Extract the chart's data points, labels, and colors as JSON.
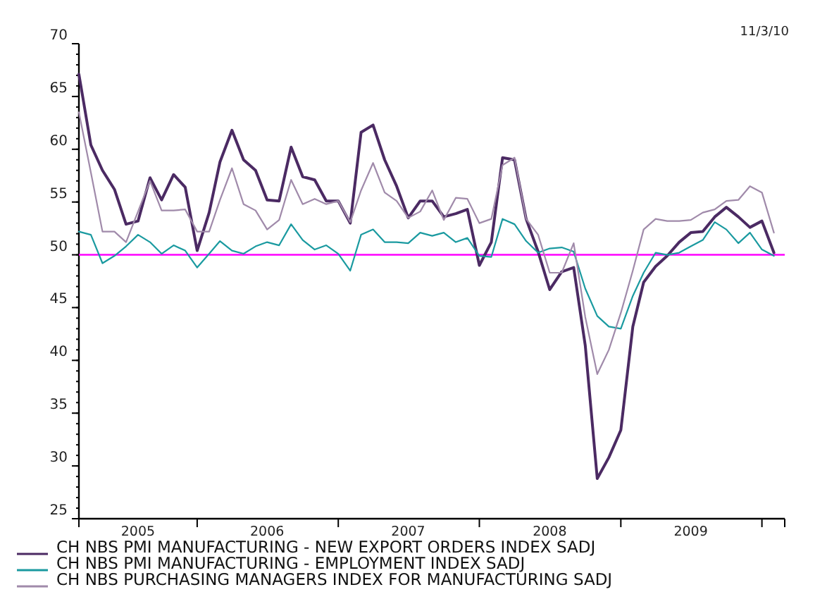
{
  "chart_data": {
    "type": "line",
    "annotations": [
      "11/3/10"
    ],
    "x": [
      "2005-03",
      "2005-04",
      "2005-05",
      "2005-06",
      "2005-07",
      "2005-08",
      "2005-09",
      "2005-10",
      "2005-11",
      "2005-12",
      "2006-01",
      "2006-02",
      "2006-03",
      "2006-04",
      "2006-05",
      "2006-06",
      "2006-07",
      "2006-08",
      "2006-09",
      "2006-10",
      "2006-11",
      "2006-12",
      "2007-01",
      "2007-02",
      "2007-03",
      "2007-04",
      "2007-05",
      "2007-06",
      "2007-07",
      "2007-08",
      "2007-09",
      "2007-10",
      "2007-11",
      "2007-12",
      "2008-01",
      "2008-02",
      "2008-03",
      "2008-04",
      "2008-05",
      "2008-06",
      "2008-07",
      "2008-08",
      "2008-09",
      "2008-10",
      "2008-11",
      "2008-12",
      "2009-01",
      "2009-02",
      "2009-03",
      "2009-04",
      "2009-05",
      "2009-06",
      "2009-07",
      "2009-08",
      "2009-09",
      "2009-10",
      "2009-11",
      "2009-12",
      "2010-01",
      "2010-02"
    ],
    "series": [
      {
        "name": "CH NBS PMI MANUFACTURING - NEW EXPORT ORDERS INDEX SADJ",
        "color": "#4b2a63",
        "values": [
          67.1,
          60.4,
          58.0,
          56.2,
          52.9,
          53.2,
          57.3,
          55.2,
          57.6,
          56.4,
          50.4,
          54.0,
          58.8,
          61.8,
          59.0,
          58.0,
          55.2,
          55.1,
          60.2,
          57.4,
          57.1,
          55.1,
          55.1,
          53.0,
          61.6,
          62.3,
          59.0,
          56.5,
          53.5,
          55.1,
          55.1,
          53.6,
          53.9,
          54.3,
          49.0,
          51.2,
          59.2,
          59.0,
          53.4,
          50.3,
          46.7,
          48.4,
          48.8,
          41.4,
          28.8,
          30.8,
          33.4,
          43.2,
          47.4,
          48.9,
          49.9,
          51.2,
          52.1,
          52.2,
          53.6,
          54.5,
          53.6,
          52.6,
          53.2,
          50.2
        ]
      },
      {
        "name": "CH NBS PMI MANUFACTURING - EMPLOYMENT INDEX SADJ",
        "color": "#1a9aa0",
        "values": [
          52.2,
          51.9,
          49.2,
          49.9,
          50.8,
          51.9,
          51.2,
          50.1,
          50.9,
          50.4,
          48.8,
          50.1,
          51.3,
          50.4,
          50.1,
          50.8,
          51.2,
          50.9,
          52.9,
          51.4,
          50.5,
          50.9,
          50.1,
          48.5,
          51.9,
          52.4,
          51.2,
          51.2,
          51.1,
          52.1,
          51.8,
          52.1,
          51.2,
          51.6,
          49.9,
          49.8,
          53.4,
          52.9,
          51.3,
          50.2,
          50.6,
          50.7,
          50.3,
          46.8,
          44.2,
          43.2,
          43.0,
          46.1,
          48.3,
          50.2,
          50.0,
          50.2,
          50.8,
          51.4,
          53.1,
          52.4,
          51.1,
          52.1,
          50.5,
          49.9
        ]
      },
      {
        "name": "CH NBS PURCHASING MANAGERS INDEX FOR MANUFACTURING SADJ",
        "color": "#a08aaa",
        "values": [
          63.5,
          57.8,
          52.2,
          52.2,
          51.2,
          54.1,
          57.0,
          54.2,
          54.2,
          54.3,
          52.2,
          52.2,
          55.2,
          58.2,
          54.8,
          54.2,
          52.4,
          53.3,
          57.1,
          54.8,
          55.3,
          54.8,
          55.1,
          53.1,
          56.1,
          58.7,
          55.9,
          55.1,
          53.5,
          54.1,
          56.1,
          53.3,
          55.4,
          55.3,
          53.0,
          53.4,
          58.5,
          59.2,
          53.4,
          51.9,
          48.3,
          48.3,
          51.1,
          44.1,
          38.7,
          41.0,
          44.5,
          48.5,
          52.4,
          53.4,
          53.2,
          53.2,
          53.3,
          54.0,
          54.3,
          55.1,
          55.2,
          56.5,
          55.9,
          52.1
        ]
      }
    ],
    "xlim": [
      "2005-03",
      "2010-03"
    ],
    "xticks": [
      {
        "value": "2005-08",
        "label": "2005"
      },
      {
        "value": "2006-01",
        "label": null
      },
      {
        "value": "2006-07",
        "label": "2006"
      },
      {
        "value": "2007-01",
        "label": null
      },
      {
        "value": "2007-07",
        "label": "2007"
      },
      {
        "value": "2008-01",
        "label": null
      },
      {
        "value": "2008-07",
        "label": "2008"
      },
      {
        "value": "2009-01",
        "label": null
      },
      {
        "value": "2009-07",
        "label": "2009"
      },
      {
        "value": "2010-01",
        "label": null
      }
    ],
    "ylim": [
      25,
      70
    ],
    "yticks": [
      25,
      30,
      35,
      40,
      45,
      50,
      55,
      60,
      65,
      70
    ],
    "ref_lines": [
      {
        "axis": "y",
        "value": 50,
        "color": "#ff00ff"
      }
    ],
    "legend": "bottom",
    "grid": false,
    "marker": "none",
    "line_style": "solid"
  }
}
